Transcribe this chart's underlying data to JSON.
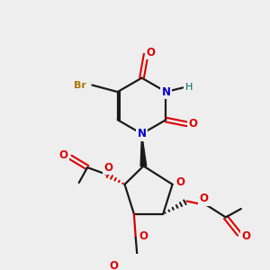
{
  "bg_color": "#eeeeee",
  "bond_color": "#1a1a1a",
  "colors": {
    "O": "#dd0000",
    "N": "#0000cc",
    "Br": "#aa7700",
    "H": "#006666",
    "C": "#1a1a1a"
  },
  "figsize": [
    3.0,
    3.0
  ],
  "dpi": 100
}
